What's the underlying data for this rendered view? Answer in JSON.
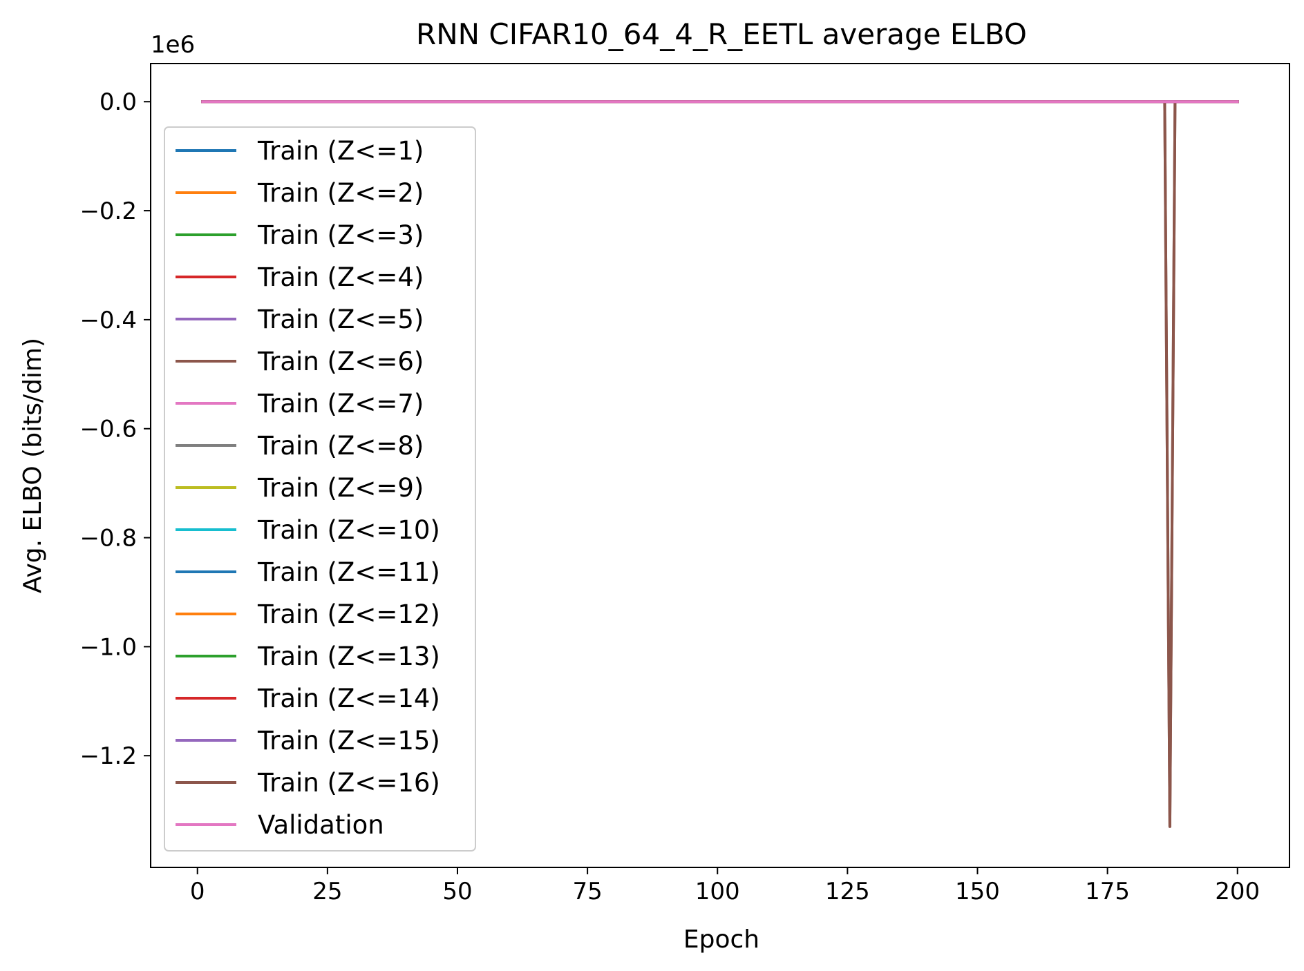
{
  "chart_data": {
    "type": "line",
    "title": "RNN CIFAR10_64_4_R_EETL average ELBO",
    "xlabel": "Epoch",
    "ylabel": "Avg. ELBO (bits/dim)",
    "y_offset_label": "1e6",
    "xlim": [
      -9,
      210
    ],
    "ylim": [
      -1.405,
      0.07
    ],
    "x_ticks": [
      0,
      25,
      50,
      75,
      100,
      125,
      150,
      175,
      200
    ],
    "x_tick_labels": [
      "0",
      "25",
      "50",
      "75",
      "100",
      "125",
      "150",
      "175",
      "200"
    ],
    "y_ticks": [
      0.0,
      -0.2,
      -0.4,
      -0.6,
      -0.8,
      -1.0,
      -1.2
    ],
    "y_tick_labels": [
      "0.0",
      "−0.2",
      "−0.4",
      "−0.6",
      "−0.8",
      "−1.0",
      "−1.2"
    ],
    "grid": false,
    "legend_position": "left",
    "series": [
      {
        "name": "Train (Z<=1)",
        "color": "#1f77b4",
        "x": [
          1,
          200
        ],
        "y": [
          0,
          0
        ]
      },
      {
        "name": "Train (Z<=2)",
        "color": "#ff7f0e",
        "x": [
          1,
          200
        ],
        "y": [
          0,
          0
        ]
      },
      {
        "name": "Train (Z<=3)",
        "color": "#2ca02c",
        "x": [
          1,
          200
        ],
        "y": [
          0,
          0
        ]
      },
      {
        "name": "Train (Z<=4)",
        "color": "#d62728",
        "x": [
          1,
          200
        ],
        "y": [
          0,
          0
        ]
      },
      {
        "name": "Train (Z<=5)",
        "color": "#9467bd",
        "x": [
          1,
          200
        ],
        "y": [
          0,
          0
        ]
      },
      {
        "name": "Train (Z<=6)",
        "color": "#8c564b",
        "x": [
          1,
          186,
          187,
          188,
          200
        ],
        "y": [
          0,
          0,
          -1.33,
          0,
          0
        ]
      },
      {
        "name": "Train (Z<=7)",
        "color": "#e377c2",
        "x": [
          1,
          200
        ],
        "y": [
          0,
          0
        ]
      },
      {
        "name": "Train (Z<=8)",
        "color": "#7f7f7f",
        "x": [
          1,
          200
        ],
        "y": [
          0,
          0
        ]
      },
      {
        "name": "Train (Z<=9)",
        "color": "#bcbd22",
        "x": [
          1,
          200
        ],
        "y": [
          0,
          0
        ]
      },
      {
        "name": "Train (Z<=10)",
        "color": "#17becf",
        "x": [
          1,
          200
        ],
        "y": [
          0,
          0
        ]
      },
      {
        "name": "Train (Z<=11)",
        "color": "#1f77b4",
        "x": [
          1,
          200
        ],
        "y": [
          0,
          0
        ]
      },
      {
        "name": "Train (Z<=12)",
        "color": "#ff7f0e",
        "x": [
          1,
          200
        ],
        "y": [
          0,
          0
        ]
      },
      {
        "name": "Train (Z<=13)",
        "color": "#2ca02c",
        "x": [
          1,
          200
        ],
        "y": [
          0,
          0
        ]
      },
      {
        "name": "Train (Z<=14)",
        "color": "#d62728",
        "x": [
          1,
          200
        ],
        "y": [
          0,
          0
        ]
      },
      {
        "name": "Train (Z<=15)",
        "color": "#9467bd",
        "x": [
          1,
          200
        ],
        "y": [
          0,
          0
        ]
      },
      {
        "name": "Train (Z<=16)",
        "color": "#8c564b",
        "x": [
          1,
          186,
          187,
          188,
          200
        ],
        "y": [
          0,
          0,
          -1.33,
          0,
          0
        ]
      },
      {
        "name": "Validation",
        "color": "#e377c2",
        "x": [
          1,
          200
        ],
        "y": [
          0,
          0
        ]
      }
    ]
  }
}
